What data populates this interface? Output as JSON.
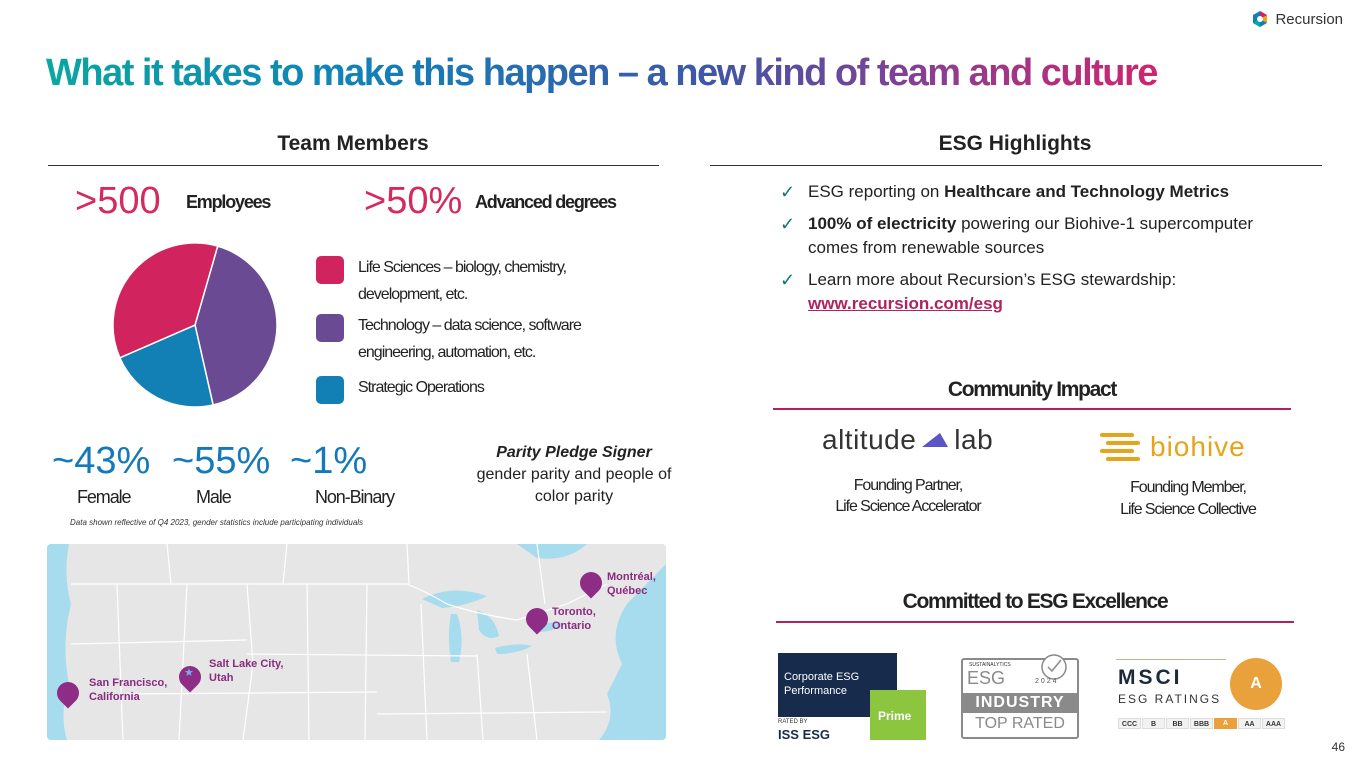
{
  "header": {
    "title": "What it takes to make this happen – a new kind of team and culture",
    "logo_text": "Recursion",
    "page_number": "46"
  },
  "team": {
    "heading": "Team Members",
    "employees_value": ">500",
    "employees_label": "Employees",
    "degrees_value": ">50%",
    "degrees_label": "Advanced degrees",
    "legend": [
      {
        "label": "Life Sciences – biology, chemistry, development, etc.",
        "color": "#d1235e"
      },
      {
        "label": "Technology – data science, software engineering, automation, etc.",
        "color": "#6a4a93"
      },
      {
        "label": "Strategic Operations",
        "color": "#1380b5"
      }
    ],
    "gender": [
      {
        "value": "~43%",
        "label": "Female"
      },
      {
        "value": "~55%",
        "label": "Male"
      },
      {
        "value": "~1%",
        "label": "Non-Binary"
      }
    ],
    "parity_title": "Parity Pledge Signer",
    "parity_text": "gender parity and people of color parity",
    "footnote": "Data shown reflective of Q4 2023, gender statistics include participating individuals"
  },
  "chart_data": {
    "type": "pie",
    "categories": [
      "Technology",
      "Strategic Operations",
      "Life Sciences"
    ],
    "values": [
      42,
      22,
      36
    ],
    "colors": [
      "#6a4a93",
      "#1380b5",
      "#d1235e"
    ],
    "title": ""
  },
  "map": {
    "cities": [
      {
        "name": "San Francisco, California"
      },
      {
        "name": "Salt Lake City, Utah"
      },
      {
        "name": "Toronto, Ontario"
      },
      {
        "name": "Montréal, Québec"
      }
    ]
  },
  "esg": {
    "heading": "ESG Highlights",
    "b1_pre": "ESG reporting on ",
    "b1_bold": "Healthcare and Technology Metrics",
    "b2_bold": "100% of electricity",
    "b2_rest": " powering our Biohive-1 supercomputer comes from renewable sources",
    "b3_text": "Learn more about Recursion’s ESG stewardship:",
    "b3_link": "www.recursion.com/esg"
  },
  "community": {
    "heading": "Community Impact",
    "altitude_logo": "altitude",
    "altitude_logo2": "lab",
    "altitude_caption1": "Founding Partner,",
    "altitude_caption2": "Life Science Accelerator",
    "biohive_logo": "biohive",
    "biohive_caption1": "Founding Member,",
    "biohive_caption2": "Life Science Collective"
  },
  "excellence": {
    "heading": "Committed to ESG Excellence",
    "iss_line1": "Corporate ESG",
    "iss_line2": "Performance",
    "iss_prime": "Prime",
    "iss_rated": "RATED BY",
    "iss_brand": "ISS ESG",
    "sust_top": "SUSTAINALYTICS",
    "sust_esg": "ESG",
    "sust_year": "2024",
    "sust_industry": "INDUSTRY",
    "sust_toprated": "TOP RATED",
    "msci_brand": "MSCI",
    "msci_sub": "ESG RATINGS",
    "msci_rating": "A",
    "msci_scale": [
      "CCC",
      "B",
      "BB",
      "BBB",
      "A",
      "AA",
      "AAA"
    ]
  }
}
